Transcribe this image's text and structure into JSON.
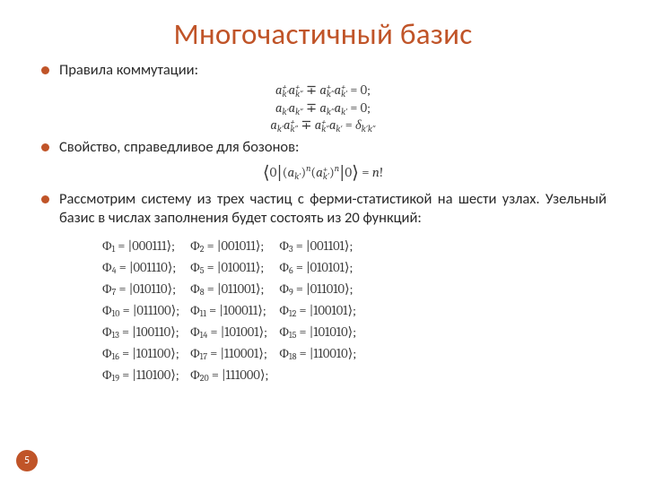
{
  "title": "Многочастичный базис",
  "page_number": "5",
  "colors": {
    "accent": "#c05428",
    "text": "#2a2a2a",
    "math": "#3a3a3a",
    "bg": "#ffffff"
  },
  "bullets": {
    "b1": "Правила коммутации:",
    "b2": "Свойство, справедливое для бозонов:",
    "b3": "Рассмотрим систему из трех частиц с ферми-статистикой на шести узлах. Узельный базис в числах заполнения будет состоять из 20 функций:"
  },
  "commutation": {
    "line1": {
      "l": "a⁺(k′) a⁺(k″) ∓ a⁺(k″) a⁺(k′)",
      "r": "0"
    },
    "line2": {
      "l": "a(k′) a(k″) ∓ a(k″) a(k′)",
      "r": "0"
    },
    "line3": {
      "l": "a(k′) a⁺(k″) ∓ a⁺(k″) a(k′)",
      "r": "δ(k′k″)"
    }
  },
  "boson_identity": {
    "lhs": "⟨0| (a(k′))ⁿ (a⁺(k′))ⁿ |0⟩",
    "rhs": "n!"
  },
  "phi": {
    "rows": [
      [
        {
          "idx": "1",
          "ket": "000111"
        },
        {
          "idx": "2",
          "ket": "001011"
        },
        {
          "idx": "3",
          "ket": "001101"
        }
      ],
      [
        {
          "idx": "4",
          "ket": "001110"
        },
        {
          "idx": "5",
          "ket": "010011"
        },
        {
          "idx": "6",
          "ket": "010101"
        }
      ],
      [
        {
          "idx": "7",
          "ket": "010110"
        },
        {
          "idx": "8",
          "ket": "011001"
        },
        {
          "idx": "9",
          "ket": "011010"
        }
      ],
      [
        {
          "idx": "10",
          "ket": "011100"
        },
        {
          "idx": "11",
          "ket": "100011"
        },
        {
          "idx": "12",
          "ket": "100101"
        }
      ],
      [
        {
          "idx": "13",
          "ket": "100110"
        },
        {
          "idx": "14",
          "ket": "101001"
        },
        {
          "idx": "15",
          "ket": "101010"
        }
      ],
      [
        {
          "idx": "16",
          "ket": "101100"
        },
        {
          "idx": "17",
          "ket": "110001"
        },
        {
          "idx": "18",
          "ket": "110010"
        }
      ],
      [
        {
          "idx": "19",
          "ket": "110100"
        },
        {
          "idx": "20",
          "ket": "111000"
        }
      ]
    ]
  }
}
